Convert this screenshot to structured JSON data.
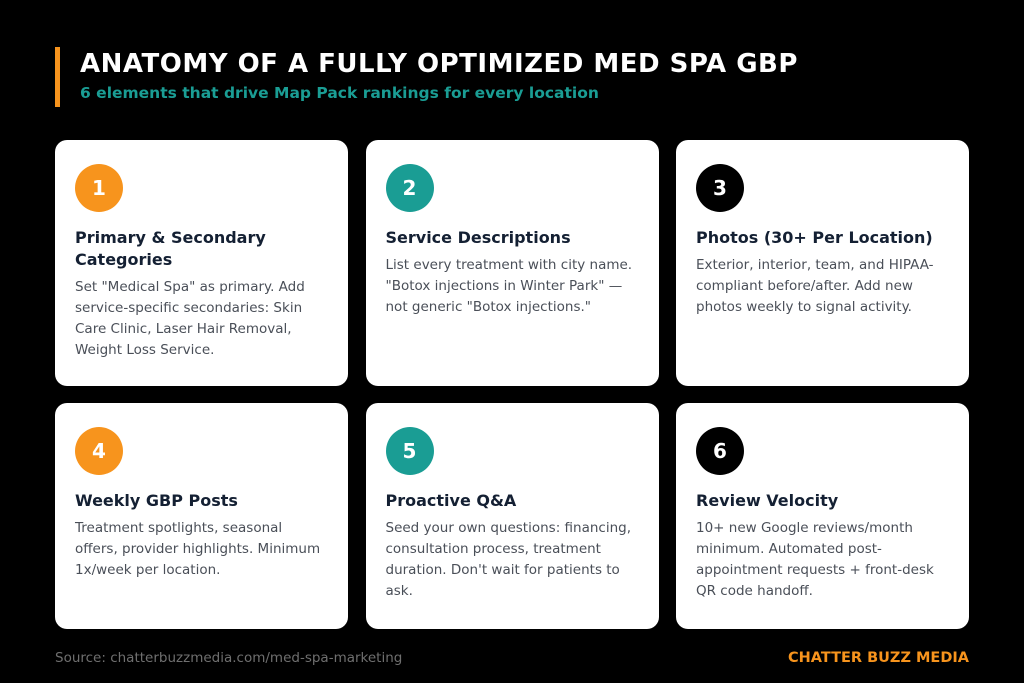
{
  "header": {
    "title": "ANATOMY OF A FULLY OPTIMIZED MED SPA GBP",
    "subtitle": "6 elements that drive Map Pack rankings for every location"
  },
  "colors": {
    "accent_orange": "#f7941d",
    "accent_teal": "#1a9d94",
    "badge_black": "#000000"
  },
  "cards": [
    {
      "number": "1",
      "badge_color": "#f7941d",
      "title": "Primary & Secondary Categories",
      "description": "Set \"Medical Spa\" as primary. Add service-specific secondaries: Skin Care Clinic, Laser Hair Removal, Weight Loss Service."
    },
    {
      "number": "2",
      "badge_color": "#1a9d94",
      "title": "Service Descriptions",
      "description": "List every treatment with city name. \"Botox injections in Winter Park\" — not generic \"Botox injections.\""
    },
    {
      "number": "3",
      "badge_color": "#000000",
      "title": "Photos (30+ Per Location)",
      "description": "Exterior, interior, team, and HIPAA-compliant before/after. Add new photos weekly to signal activity."
    },
    {
      "number": "4",
      "badge_color": "#f7941d",
      "title": "Weekly GBP Posts",
      "description": "Treatment spotlights, seasonal offers, provider highlights. Minimum 1x/week per location."
    },
    {
      "number": "5",
      "badge_color": "#1a9d94",
      "title": "Proactive Q&A",
      "description": "Seed your own questions: financing, consultation process, treatment duration. Don't wait for patients to ask."
    },
    {
      "number": "6",
      "badge_color": "#000000",
      "title": "Review Velocity",
      "description": "10+ new Google reviews/month minimum. Automated post-appointment requests + front-desk QR code handoff."
    }
  ],
  "footer": {
    "source": "Source: chatterbuzzmedia.com/med-spa-marketing",
    "brand": "CHATTER BUZZ MEDIA"
  }
}
